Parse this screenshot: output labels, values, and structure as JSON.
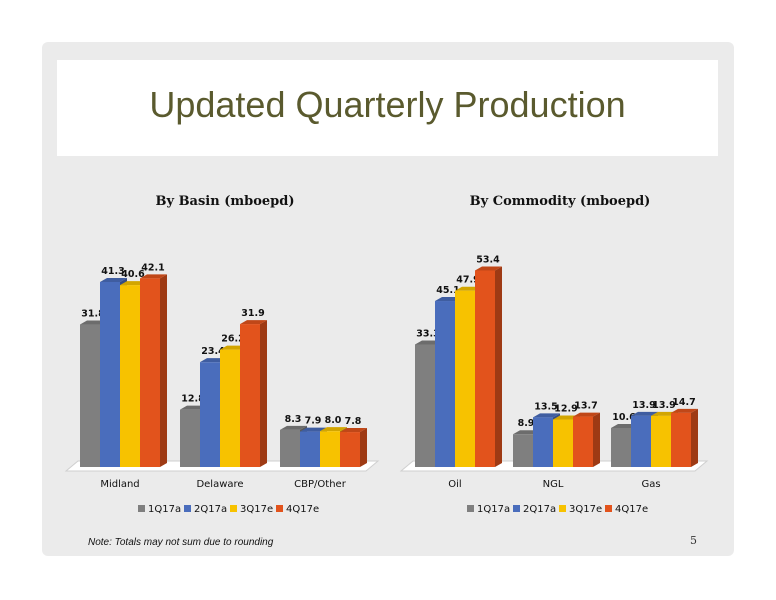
{
  "slide": {
    "title": "Updated Quarterly Production",
    "note": "Note: Totals may not sum due to rounding",
    "page_number": "5"
  },
  "colors": {
    "1Q17a": "#7f7f7f",
    "2Q17a": "#4a6dbc",
    "3Q17e": "#f7c200",
    "4Q17e": "#e2531c"
  },
  "chart_data": [
    {
      "type": "bar",
      "title": "By Basin (mboepd)",
      "categories": [
        "Midland",
        "Delaware",
        "CBP/Other"
      ],
      "series": [
        {
          "name": "1Q17a",
          "values": [
            31.8,
            12.8,
            8.3
          ]
        },
        {
          "name": "2Q17a",
          "values": [
            41.3,
            23.4,
            7.9
          ]
        },
        {
          "name": "3Q17e",
          "values": [
            40.6,
            26.2,
            8.0
          ]
        },
        {
          "name": "4Q17e",
          "values": [
            42.1,
            31.9,
            7.8
          ]
        }
      ],
      "ylim": [
        0,
        45
      ],
      "legend": "bottom"
    },
    {
      "type": "bar",
      "title": "By Commodity (mboepd)",
      "categories": [
        "Oil",
        "NGL",
        "Gas"
      ],
      "series": [
        {
          "name": "1Q17a",
          "values": [
            33.3,
            8.9,
            10.6
          ]
        },
        {
          "name": "2Q17a",
          "values": [
            45.1,
            13.5,
            13.9
          ]
        },
        {
          "name": "3Q17e",
          "values": [
            47.9,
            12.9,
            13.9
          ]
        },
        {
          "name": "4Q17e",
          "values": [
            53.4,
            13.7,
            14.7
          ]
        }
      ],
      "ylim": [
        0,
        60
      ],
      "legend": "bottom"
    }
  ]
}
